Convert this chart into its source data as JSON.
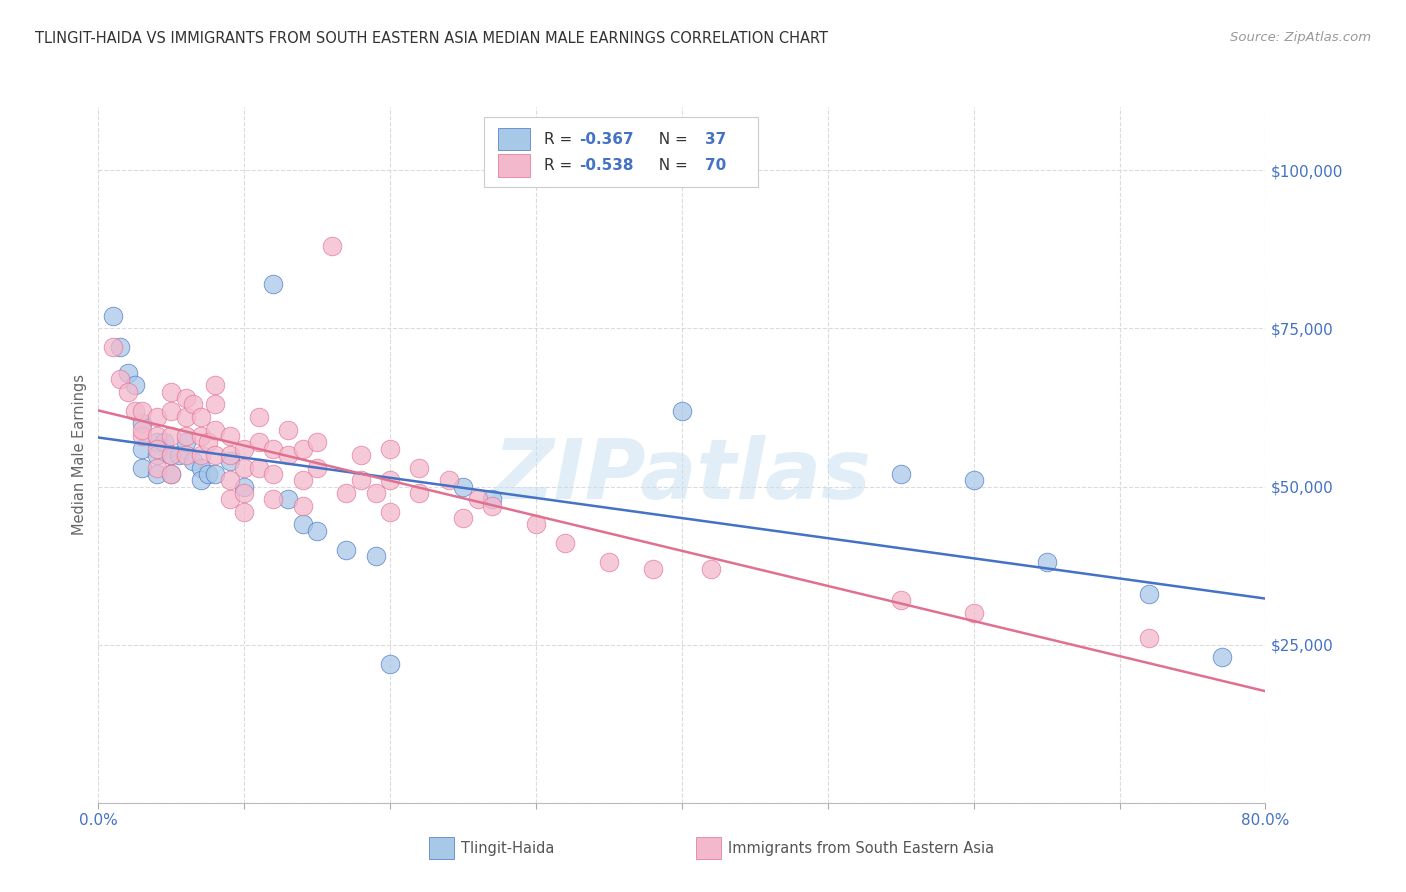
{
  "title": "TLINGIT-HAIDA VS IMMIGRANTS FROM SOUTH EASTERN ASIA MEDIAN MALE EARNINGS CORRELATION CHART",
  "source": "Source: ZipAtlas.com",
  "ylabel": "Median Male Earnings",
  "xlim": [
    0.0,
    0.8
  ],
  "ylim": [
    0,
    110000
  ],
  "yticks": [
    0,
    25000,
    50000,
    75000,
    100000
  ],
  "ytick_labels": [
    "",
    "$25,000",
    "$50,000",
    "$75,000",
    "$100,000"
  ],
  "xticks": [
    0.0,
    0.1,
    0.2,
    0.3,
    0.4,
    0.5,
    0.6,
    0.7,
    0.8
  ],
  "xtick_labels": [
    "0.0%",
    "",
    "",
    "",
    "",
    "",
    "",
    "",
    "80.0%"
  ],
  "color_blue": "#a8c8e8",
  "color_pink": "#f4b8cc",
  "color_blue_line": "#4472c4",
  "color_pink_line": "#e07090",
  "color_axis_label": "#666666",
  "color_title": "#333333",
  "color_source": "#999999",
  "color_ytick": "#4472c4",
  "color_legend_text": "#333333",
  "watermark": "ZIPatlas",
  "scatter_blue": [
    [
      0.01,
      77000
    ],
    [
      0.015,
      72000
    ],
    [
      0.02,
      68000
    ],
    [
      0.025,
      66000
    ],
    [
      0.03,
      60000
    ],
    [
      0.03,
      56000
    ],
    [
      0.03,
      53000
    ],
    [
      0.04,
      57000
    ],
    [
      0.04,
      55000
    ],
    [
      0.04,
      52000
    ],
    [
      0.045,
      57000
    ],
    [
      0.05,
      55000
    ],
    [
      0.05,
      52000
    ],
    [
      0.055,
      55000
    ],
    [
      0.06,
      57000
    ],
    [
      0.065,
      54000
    ],
    [
      0.07,
      53000
    ],
    [
      0.07,
      51000
    ],
    [
      0.075,
      52000
    ],
    [
      0.08,
      52000
    ],
    [
      0.09,
      54000
    ],
    [
      0.1,
      50000
    ],
    [
      0.12,
      82000
    ],
    [
      0.13,
      48000
    ],
    [
      0.14,
      44000
    ],
    [
      0.15,
      43000
    ],
    [
      0.17,
      40000
    ],
    [
      0.19,
      39000
    ],
    [
      0.2,
      22000
    ],
    [
      0.25,
      50000
    ],
    [
      0.27,
      48000
    ],
    [
      0.4,
      62000
    ],
    [
      0.55,
      52000
    ],
    [
      0.6,
      51000
    ],
    [
      0.65,
      38000
    ],
    [
      0.72,
      33000
    ],
    [
      0.77,
      23000
    ]
  ],
  "scatter_pink": [
    [
      0.01,
      72000
    ],
    [
      0.015,
      67000
    ],
    [
      0.02,
      65000
    ],
    [
      0.025,
      62000
    ],
    [
      0.03,
      58000
    ],
    [
      0.03,
      62000
    ],
    [
      0.03,
      59000
    ],
    [
      0.04,
      61000
    ],
    [
      0.04,
      58000
    ],
    [
      0.04,
      56000
    ],
    [
      0.04,
      53000
    ],
    [
      0.05,
      65000
    ],
    [
      0.05,
      62000
    ],
    [
      0.05,
      58000
    ],
    [
      0.05,
      55000
    ],
    [
      0.05,
      52000
    ],
    [
      0.06,
      64000
    ],
    [
      0.06,
      61000
    ],
    [
      0.06,
      58000
    ],
    [
      0.06,
      55000
    ],
    [
      0.065,
      63000
    ],
    [
      0.07,
      61000
    ],
    [
      0.07,
      58000
    ],
    [
      0.07,
      55000
    ],
    [
      0.075,
      57000
    ],
    [
      0.08,
      66000
    ],
    [
      0.08,
      63000
    ],
    [
      0.08,
      59000
    ],
    [
      0.08,
      55000
    ],
    [
      0.09,
      58000
    ],
    [
      0.09,
      55000
    ],
    [
      0.09,
      51000
    ],
    [
      0.09,
      48000
    ],
    [
      0.1,
      56000
    ],
    [
      0.1,
      53000
    ],
    [
      0.1,
      49000
    ],
    [
      0.1,
      46000
    ],
    [
      0.11,
      61000
    ],
    [
      0.11,
      57000
    ],
    [
      0.11,
      53000
    ],
    [
      0.12,
      56000
    ],
    [
      0.12,
      52000
    ],
    [
      0.12,
      48000
    ],
    [
      0.13,
      59000
    ],
    [
      0.13,
      55000
    ],
    [
      0.14,
      56000
    ],
    [
      0.14,
      51000
    ],
    [
      0.14,
      47000
    ],
    [
      0.15,
      57000
    ],
    [
      0.15,
      53000
    ],
    [
      0.16,
      88000
    ],
    [
      0.17,
      49000
    ],
    [
      0.18,
      55000
    ],
    [
      0.18,
      51000
    ],
    [
      0.19,
      49000
    ],
    [
      0.2,
      56000
    ],
    [
      0.2,
      51000
    ],
    [
      0.2,
      46000
    ],
    [
      0.22,
      53000
    ],
    [
      0.22,
      49000
    ],
    [
      0.24,
      51000
    ],
    [
      0.25,
      45000
    ],
    [
      0.26,
      48000
    ],
    [
      0.27,
      47000
    ],
    [
      0.3,
      44000
    ],
    [
      0.32,
      41000
    ],
    [
      0.35,
      38000
    ],
    [
      0.38,
      37000
    ],
    [
      0.42,
      37000
    ],
    [
      0.55,
      32000
    ],
    [
      0.6,
      30000
    ],
    [
      0.72,
      26000
    ]
  ]
}
